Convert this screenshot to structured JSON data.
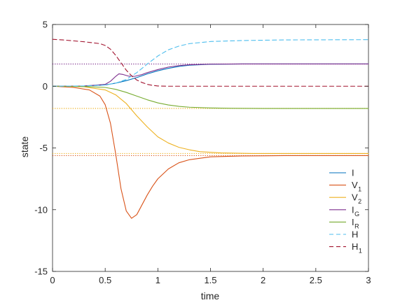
{
  "chart_data": {
    "type": "line",
    "xlabel": "time",
    "ylabel": "state",
    "xlim": [
      0,
      3
    ],
    "ylim": [
      -15,
      5
    ],
    "xticks": [
      0,
      0.5,
      1,
      1.5,
      2,
      2.5,
      3
    ],
    "xtick_labels": [
      "0",
      "0.5",
      "1",
      "1.5",
      "2",
      "2.5",
      "3"
    ],
    "yticks": [
      -15,
      -10,
      -5,
      0,
      5
    ],
    "ytick_labels": [
      "-15",
      "-10",
      "-5",
      "0",
      "5"
    ],
    "grid": false,
    "legend_position": "bottom-right",
    "series": [
      {
        "name": "I",
        "color": "#0072BD",
        "style": "solid",
        "x": [
          0,
          0.3,
          0.5,
          0.6,
          0.7,
          0.8,
          0.9,
          1.0,
          1.1,
          1.2,
          1.3,
          1.5,
          1.8,
          2.2,
          3.0
        ],
        "y": [
          0,
          0.02,
          0.1,
          0.25,
          0.45,
          0.7,
          1.0,
          1.25,
          1.45,
          1.6,
          1.7,
          1.78,
          1.8,
          1.8,
          1.8
        ]
      },
      {
        "name": "V",
        "subscript": "1",
        "color": "#D95319",
        "style": "solid",
        "x": [
          0,
          0.2,
          0.35,
          0.45,
          0.5,
          0.55,
          0.6,
          0.65,
          0.7,
          0.75,
          0.8,
          0.85,
          0.9,
          0.95,
          1.0,
          1.1,
          1.2,
          1.3,
          1.5,
          1.8,
          2.2,
          3.0
        ],
        "y": [
          0,
          -0.1,
          -0.3,
          -0.8,
          -1.5,
          -3.0,
          -5.5,
          -8.3,
          -10.1,
          -10.7,
          -10.4,
          -9.6,
          -8.8,
          -8.1,
          -7.5,
          -6.7,
          -6.2,
          -5.95,
          -5.72,
          -5.65,
          -5.62,
          -5.62
        ]
      },
      {
        "name": "V",
        "subscript": "2",
        "color": "#EDB120",
        "style": "solid",
        "x": [
          0,
          0.3,
          0.5,
          0.6,
          0.7,
          0.8,
          0.9,
          1.0,
          1.1,
          1.2,
          1.3,
          1.4,
          1.6,
          1.9,
          2.3,
          3.0
        ],
        "y": [
          0,
          -0.05,
          -0.3,
          -0.7,
          -1.4,
          -2.4,
          -3.3,
          -4.1,
          -4.6,
          -4.95,
          -5.15,
          -5.3,
          -5.4,
          -5.45,
          -5.45,
          -5.45
        ]
      },
      {
        "name": "I",
        "subscript": "G",
        "color": "#7E2F8E",
        "style": "solid",
        "x": [
          0,
          0.3,
          0.5,
          0.55,
          0.6,
          0.63,
          0.67,
          0.72,
          0.78,
          0.85,
          0.9,
          1.0,
          1.1,
          1.2,
          1.3,
          1.5,
          1.8,
          3.0
        ],
        "y": [
          0,
          0.02,
          0.15,
          0.4,
          0.8,
          1.0,
          0.95,
          0.82,
          0.8,
          0.95,
          1.1,
          1.35,
          1.55,
          1.67,
          1.74,
          1.79,
          1.8,
          1.8
        ]
      },
      {
        "name": "I",
        "subscript": "R",
        "color": "#77AC30",
        "style": "solid",
        "x": [
          0,
          0.3,
          0.5,
          0.6,
          0.7,
          0.8,
          0.9,
          1.0,
          1.1,
          1.2,
          1.3,
          1.5,
          1.7,
          2.0,
          3.0
        ],
        "y": [
          0,
          -0.02,
          -0.1,
          -0.25,
          -0.5,
          -0.8,
          -1.1,
          -1.35,
          -1.52,
          -1.63,
          -1.7,
          -1.76,
          -1.79,
          -1.8,
          -1.8
        ]
      },
      {
        "name": "H",
        "color": "#4DBEEE",
        "style": "dashed",
        "x": [
          0,
          0.3,
          0.5,
          0.6,
          0.7,
          0.8,
          0.9,
          1.0,
          1.1,
          1.2,
          1.3,
          1.5,
          1.8,
          2.2,
          3.0
        ],
        "y": [
          0,
          0.02,
          0.1,
          0.25,
          0.55,
          1.1,
          1.8,
          2.45,
          2.95,
          3.25,
          3.45,
          3.62,
          3.7,
          3.75,
          3.77
        ]
      },
      {
        "name": "H",
        "subscript": "1",
        "color": "#A2142F",
        "style": "dashed",
        "x": [
          0,
          0.1,
          0.3,
          0.45,
          0.5,
          0.55,
          0.6,
          0.65,
          0.7,
          0.75,
          0.8,
          0.85,
          0.9,
          0.95,
          1.0,
          1.1,
          1.2,
          1.5,
          3.0
        ],
        "y": [
          3.8,
          3.75,
          3.6,
          3.45,
          3.3,
          3.0,
          2.5,
          1.9,
          1.3,
          0.85,
          0.5,
          0.3,
          0.15,
          0.07,
          0.02,
          0,
          0,
          0,
          0
        ]
      }
    ],
    "reference_lines": [
      {
        "y": 1.8,
        "color": "#7E2F8E",
        "style": "dotted"
      },
      {
        "y": -1.8,
        "color": "#EDB120",
        "style": "dotted"
      },
      {
        "y": -5.45,
        "color": "#EDB120",
        "style": "dotted"
      },
      {
        "y": -5.62,
        "color": "#D95319",
        "style": "dotted"
      }
    ]
  }
}
